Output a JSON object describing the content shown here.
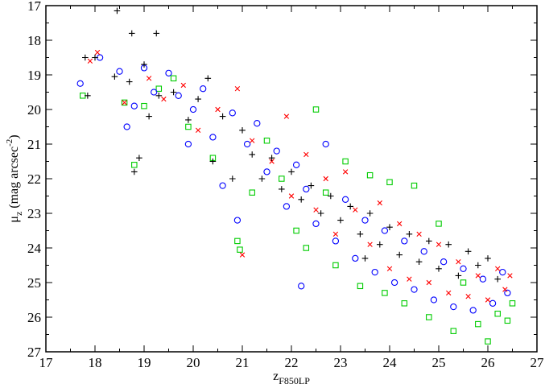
{
  "chart_data": {
    "type": "scatter",
    "title": "",
    "xlabel": {
      "main": "z",
      "sub": "F850LP"
    },
    "ylabel": {
      "main": "μ",
      "sub": "z",
      "rest": " (mag arcsec",
      "sup": "-2",
      "close": ")"
    },
    "xlim": [
      17,
      27
    ],
    "ylim": [
      17,
      27
    ],
    "y_inverted": true,
    "grid": false,
    "legend": "none",
    "x_ticks": [
      17,
      18,
      19,
      20,
      21,
      22,
      23,
      24,
      25,
      26,
      27
    ],
    "y_ticks": [
      17,
      18,
      19,
      20,
      21,
      22,
      23,
      24,
      25,
      26,
      27
    ],
    "series": [
      {
        "marker": "plus",
        "color": "#000000",
        "description_points": "anchor points (x, y) estimated from the figure; the trend runs from bright galaxies at upper left to faint ones at lower right",
        "points": [
          [
            18.45,
            17.15
          ],
          [
            18.75,
            17.8
          ],
          [
            19.25,
            17.8
          ],
          [
            17.8,
            18.5
          ],
          [
            17.85,
            19.6
          ],
          [
            18.0,
            18.5
          ],
          [
            18.4,
            19.05
          ],
          [
            18.7,
            19.2
          ],
          [
            18.8,
            21.8
          ],
          [
            18.9,
            21.4
          ],
          [
            19.0,
            18.7
          ],
          [
            19.1,
            20.2
          ],
          [
            19.3,
            19.6
          ],
          [
            19.6,
            19.5
          ],
          [
            19.9,
            20.3
          ],
          [
            20.1,
            19.7
          ],
          [
            20.3,
            19.1
          ],
          [
            20.4,
            21.5
          ],
          [
            20.6,
            20.2
          ],
          [
            20.8,
            22.0
          ],
          [
            21.0,
            20.6
          ],
          [
            21.2,
            21.3
          ],
          [
            21.4,
            22.0
          ],
          [
            21.6,
            21.4
          ],
          [
            21.8,
            22.3
          ],
          [
            22.0,
            21.8
          ],
          [
            22.2,
            22.6
          ],
          [
            22.4,
            22.2
          ],
          [
            22.6,
            23.0
          ],
          [
            22.8,
            22.5
          ],
          [
            23.0,
            23.2
          ],
          [
            23.2,
            22.8
          ],
          [
            23.4,
            23.6
          ],
          [
            23.5,
            24.3
          ],
          [
            23.6,
            23.0
          ],
          [
            23.8,
            23.9
          ],
          [
            24.0,
            23.4
          ],
          [
            24.2,
            24.2
          ],
          [
            24.4,
            23.6
          ],
          [
            24.6,
            24.4
          ],
          [
            24.8,
            23.8
          ],
          [
            25.0,
            24.6
          ],
          [
            25.2,
            23.9
          ],
          [
            25.4,
            24.8
          ],
          [
            25.6,
            24.1
          ],
          [
            25.8,
            24.5
          ],
          [
            26.0,
            24.3
          ],
          [
            26.2,
            24.9
          ]
        ]
      },
      {
        "marker": "circle",
        "color": "#0000ff",
        "points": [
          [
            17.7,
            19.25
          ],
          [
            18.1,
            18.5
          ],
          [
            18.5,
            18.9
          ],
          [
            18.65,
            20.5
          ],
          [
            18.8,
            19.9
          ],
          [
            19.0,
            18.8
          ],
          [
            19.2,
            19.5
          ],
          [
            19.5,
            18.95
          ],
          [
            19.7,
            19.6
          ],
          [
            19.9,
            21.0
          ],
          [
            20.0,
            20.0
          ],
          [
            20.2,
            19.4
          ],
          [
            20.4,
            20.8
          ],
          [
            20.6,
            22.2
          ],
          [
            20.8,
            20.1
          ],
          [
            20.9,
            23.2
          ],
          [
            21.1,
            21.0
          ],
          [
            21.3,
            20.4
          ],
          [
            21.5,
            21.8
          ],
          [
            21.7,
            21.2
          ],
          [
            21.9,
            22.8
          ],
          [
            22.1,
            21.6
          ],
          [
            22.2,
            25.1
          ],
          [
            22.3,
            22.3
          ],
          [
            22.5,
            23.3
          ],
          [
            22.7,
            21.0
          ],
          [
            22.9,
            23.8
          ],
          [
            23.1,
            22.6
          ],
          [
            23.3,
            24.3
          ],
          [
            23.5,
            23.2
          ],
          [
            23.7,
            24.7
          ],
          [
            23.9,
            23.5
          ],
          [
            24.1,
            25.0
          ],
          [
            24.3,
            23.8
          ],
          [
            24.5,
            25.2
          ],
          [
            24.7,
            24.1
          ],
          [
            24.9,
            25.5
          ],
          [
            25.1,
            24.4
          ],
          [
            25.3,
            25.7
          ],
          [
            25.5,
            24.6
          ],
          [
            25.7,
            25.8
          ],
          [
            25.9,
            24.9
          ],
          [
            26.1,
            25.6
          ],
          [
            26.3,
            24.7
          ],
          [
            26.4,
            25.3
          ]
        ]
      },
      {
        "marker": "cross",
        "color": "#ff0000",
        "points": [
          [
            17.9,
            18.6
          ],
          [
            18.05,
            18.35
          ],
          [
            18.6,
            19.8
          ],
          [
            19.1,
            19.1
          ],
          [
            19.4,
            19.7
          ],
          [
            19.8,
            19.3
          ],
          [
            20.1,
            20.6
          ],
          [
            20.5,
            20.0
          ],
          [
            20.9,
            19.4
          ],
          [
            21.0,
            24.2
          ],
          [
            21.2,
            20.9
          ],
          [
            21.6,
            21.5
          ],
          [
            21.9,
            20.2
          ],
          [
            22.0,
            22.5
          ],
          [
            22.3,
            21.3
          ],
          [
            22.5,
            22.9
          ],
          [
            22.7,
            22.0
          ],
          [
            22.9,
            23.6
          ],
          [
            23.1,
            21.8
          ],
          [
            23.3,
            22.9
          ],
          [
            23.6,
            23.9
          ],
          [
            23.8,
            22.7
          ],
          [
            24.0,
            24.6
          ],
          [
            24.2,
            23.3
          ],
          [
            24.4,
            24.9
          ],
          [
            24.6,
            23.6
          ],
          [
            24.8,
            25.0
          ],
          [
            25.0,
            23.9
          ],
          [
            25.2,
            25.3
          ],
          [
            25.4,
            24.4
          ],
          [
            25.6,
            25.4
          ],
          [
            25.8,
            24.8
          ],
          [
            26.0,
            25.5
          ],
          [
            26.2,
            24.6
          ],
          [
            26.35,
            25.2
          ],
          [
            26.45,
            24.8
          ]
        ]
      },
      {
        "marker": "square",
        "color": "#00cc00",
        "points": [
          [
            17.75,
            19.6
          ],
          [
            18.6,
            19.8
          ],
          [
            18.8,
            21.6
          ],
          [
            19.0,
            19.9
          ],
          [
            19.3,
            19.4
          ],
          [
            19.6,
            19.1
          ],
          [
            19.9,
            20.5
          ],
          [
            20.4,
            21.4
          ],
          [
            20.9,
            23.8
          ],
          [
            20.95,
            24.05
          ],
          [
            21.2,
            22.4
          ],
          [
            21.5,
            20.9
          ],
          [
            21.8,
            22.0
          ],
          [
            22.1,
            23.5
          ],
          [
            22.3,
            24.0
          ],
          [
            22.5,
            20.0
          ],
          [
            22.7,
            22.4
          ],
          [
            22.9,
            24.5
          ],
          [
            23.1,
            21.5
          ],
          [
            23.4,
            25.1
          ],
          [
            23.6,
            21.9
          ],
          [
            23.9,
            25.3
          ],
          [
            24.0,
            22.1
          ],
          [
            24.3,
            25.6
          ],
          [
            24.5,
            22.2
          ],
          [
            24.8,
            26.0
          ],
          [
            25.0,
            23.3
          ],
          [
            25.3,
            26.4
          ],
          [
            25.5,
            25.0
          ],
          [
            25.8,
            26.2
          ],
          [
            26.0,
            26.7
          ],
          [
            26.2,
            25.9
          ],
          [
            26.4,
            26.1
          ],
          [
            26.5,
            25.6
          ]
        ]
      }
    ]
  }
}
